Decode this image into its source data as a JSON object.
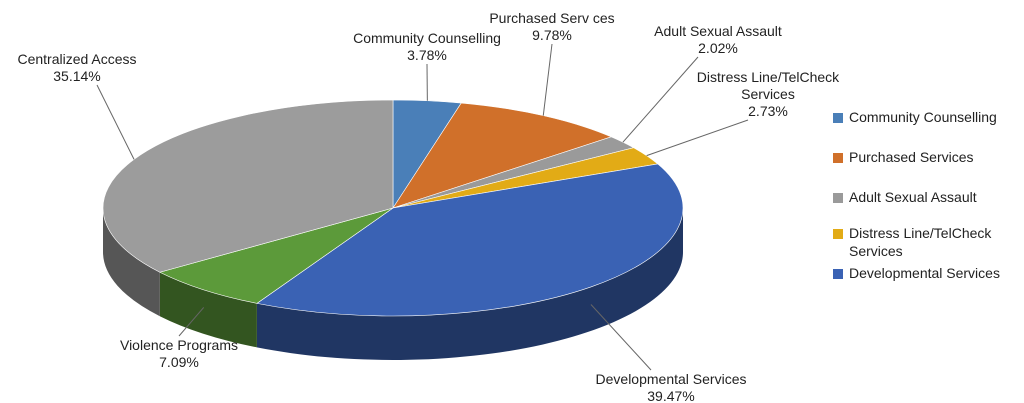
{
  "chart_data": {
    "type": "pie",
    "title": "",
    "three_d": true,
    "categories": [
      "Community Counselling",
      "Purchased Services",
      "Adult Sexual Assault",
      "Distress Line/TelCheck Services",
      "Developmental Services",
      "Violence Programs",
      "Centralized Access"
    ],
    "values": [
      3.78,
      9.78,
      2.02,
      2.73,
      39.47,
      7.09,
      35.14
    ],
    "value_labels": [
      "3.78%",
      "9.78%",
      "2.02%",
      "2.73%",
      "39.47%",
      "7.09%",
      "35.14%"
    ],
    "slice_labels": [
      [
        "Community Counselling"
      ],
      [
        "Purchased Serv ces"
      ],
      [
        "Adult Sexual Assault"
      ],
      [
        "Distress Line/TelCheck",
        "Services"
      ],
      [
        "Developmental Services"
      ],
      [
        "Violence Programs"
      ],
      [
        "Centralized Access"
      ]
    ],
    "colors": [
      "#4a7fb8",
      "#d0702a",
      "#9a9a9a",
      "#e2ab16",
      "#3a62b4",
      "#5c9a3a",
      "#9c9c9c"
    ],
    "legend": {
      "position": "right",
      "entries": [
        {
          "label": "Community Counselling",
          "color": "#4a7fb8"
        },
        {
          "label": "Purchased Services",
          "color": "#d0702a"
        },
        {
          "label": "Adult Sexual Assault",
          "color": "#9a9a9a"
        },
        {
          "label": "Distress Line/TelCheck Services",
          "color": "#e2ab16"
        },
        {
          "label": "Developmental Services",
          "color": "#3a62b4"
        }
      ]
    }
  }
}
